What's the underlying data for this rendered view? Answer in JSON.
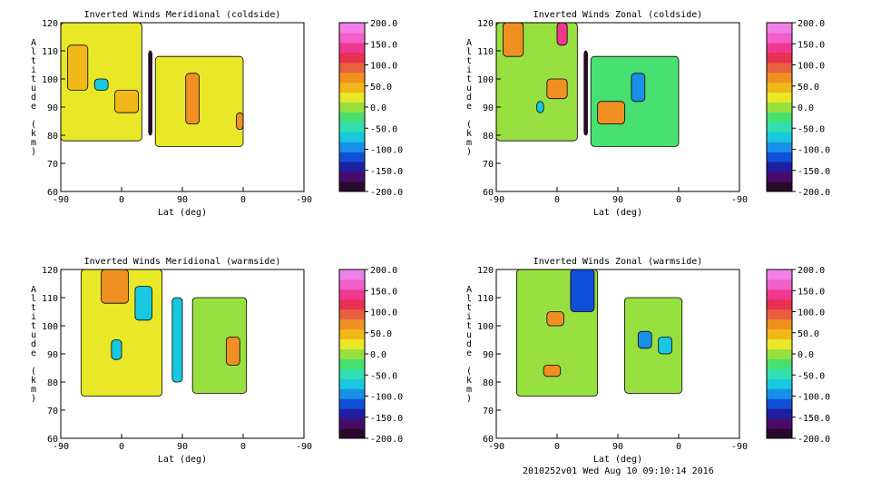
{
  "footer": "2010252v01 Wed Aug 10 09:10:14 2016",
  "colorbar": {
    "ticks": [
      "200.0",
      "150.0",
      "100.0",
      "50.0",
      "0.0",
      "-50.0",
      "-100.0",
      "-150.0",
      "-200.0"
    ],
    "range": [
      -200,
      200
    ],
    "colors": [
      "#2a0a2a",
      "#4a0a6a",
      "#1e1ea0",
      "#1050d8",
      "#1890e8",
      "#18c8e0",
      "#30e0b0",
      "#48e070",
      "#98e040",
      "#e8e828",
      "#f0b818",
      "#f09020",
      "#e86040",
      "#e83050",
      "#f03890",
      "#f060c8",
      "#f080e8"
    ]
  },
  "chart_data": [
    {
      "type": "heatmap",
      "title": "Inverted Winds Meridional (coldside)",
      "xlabel": "Lat (deg)",
      "ylabel": "Altitude (km)",
      "xticks": [
        "-90",
        "0",
        "90",
        "0",
        "-90"
      ],
      "yticks": [
        "60",
        "70",
        "80",
        "90",
        "100",
        "110",
        "120"
      ],
      "ylim": [
        60,
        120
      ],
      "regions": [
        {
          "x": [
            -90,
            30
          ],
          "y": [
            78,
            120
          ],
          "value": 20
        },
        {
          "x": [
            -10,
            25
          ],
          "y": [
            88,
            96
          ],
          "value": 55
        },
        {
          "x": [
            -80,
            -50
          ],
          "y": [
            96,
            112
          ],
          "value": 45
        },
        {
          "x": [
            -40,
            -20
          ],
          "y": [
            96,
            100
          ],
          "value": -60
        },
        {
          "x": [
            40,
            45
          ],
          "y": [
            80,
            110
          ],
          "value": -200
        },
        {
          "x": [
            50,
            180
          ],
          "y": [
            76,
            108
          ],
          "value": 20
        },
        {
          "x": [
            95,
            115
          ],
          "y": [
            84,
            102
          ],
          "value": 60
        },
        {
          "x": [
            170,
            180
          ],
          "y": [
            82,
            88
          ],
          "value": 70
        }
      ]
    },
    {
      "type": "heatmap",
      "title": "Inverted Winds Zonal (coldside)",
      "xlabel": "Lat (deg)",
      "ylabel": "Altitude (km)",
      "xticks": [
        "-90",
        "0",
        "90",
        "0",
        "-90"
      ],
      "yticks": [
        "60",
        "70",
        "80",
        "90",
        "100",
        "110",
        "120"
      ],
      "ylim": [
        60,
        120
      ],
      "regions": [
        {
          "x": [
            -90,
            30
          ],
          "y": [
            78,
            120
          ],
          "value": 10
        },
        {
          "x": [
            -15,
            15
          ],
          "y": [
            93,
            100
          ],
          "value": 70
        },
        {
          "x": [
            -80,
            -50
          ],
          "y": [
            108,
            120
          ],
          "value": 60
        },
        {
          "x": [
            0,
            15
          ],
          "y": [
            112,
            120
          ],
          "value": 130
        },
        {
          "x": [
            -30,
            -20
          ],
          "y": [
            88,
            92
          ],
          "value": -80
        },
        {
          "x": [
            40,
            45
          ],
          "y": [
            80,
            110
          ],
          "value": -200
        },
        {
          "x": [
            50,
            180
          ],
          "y": [
            76,
            108
          ],
          "value": -30
        },
        {
          "x": [
            60,
            100
          ],
          "y": [
            84,
            92
          ],
          "value": 60
        },
        {
          "x": [
            110,
            130
          ],
          "y": [
            92,
            102
          ],
          "value": -90
        }
      ]
    },
    {
      "type": "heatmap",
      "title": "Inverted Winds Meridional (warmside)",
      "xlabel": "Lat (deg)",
      "ylabel": "Altitude (km)",
      "xticks": [
        "-90",
        "0",
        "90",
        "0",
        "-90"
      ],
      "yticks": [
        "60",
        "70",
        "80",
        "90",
        "100",
        "110",
        "120"
      ],
      "ylim": [
        60,
        120
      ],
      "regions": [
        {
          "x": [
            -60,
            60
          ],
          "y": [
            75,
            120
          ],
          "value": 20
        },
        {
          "x": [
            -30,
            10
          ],
          "y": [
            108,
            120
          ],
          "value": 60
        },
        {
          "x": [
            20,
            45
          ],
          "y": [
            102,
            114
          ],
          "value": -80
        },
        {
          "x": [
            -15,
            0
          ],
          "y": [
            88,
            95
          ],
          "value": -70
        },
        {
          "x": [
            75,
            90
          ],
          "y": [
            80,
            110
          ],
          "value": -60
        },
        {
          "x": [
            105,
            185
          ],
          "y": [
            76,
            110
          ],
          "value": 0
        },
        {
          "x": [
            155,
            175
          ],
          "y": [
            86,
            96
          ],
          "value": 80
        }
      ]
    },
    {
      "type": "heatmap",
      "title": "Inverted Winds Zonal (warmside)",
      "xlabel": "Lat (deg)",
      "ylabel": "Altitude (km)",
      "xticks": [
        "-90",
        "0",
        "90",
        "0",
        "-90"
      ],
      "yticks": [
        "60",
        "70",
        "80",
        "90",
        "100",
        "110",
        "120"
      ],
      "ylim": [
        60,
        120
      ],
      "regions": [
        {
          "x": [
            -60,
            60
          ],
          "y": [
            75,
            120
          ],
          "value": 10
        },
        {
          "x": [
            -15,
            10
          ],
          "y": [
            100,
            105
          ],
          "value": 70
        },
        {
          "x": [
            -20,
            5
          ],
          "y": [
            82,
            86
          ],
          "value": 70
        },
        {
          "x": [
            20,
            55
          ],
          "y": [
            105,
            120
          ],
          "value": -120
        },
        {
          "x": [
            100,
            185
          ],
          "y": [
            76,
            110
          ],
          "value": -10
        },
        {
          "x": [
            120,
            140
          ],
          "y": [
            92,
            98
          ],
          "value": -90
        },
        {
          "x": [
            150,
            170
          ],
          "y": [
            90,
            96
          ],
          "value": -80
        }
      ]
    }
  ]
}
